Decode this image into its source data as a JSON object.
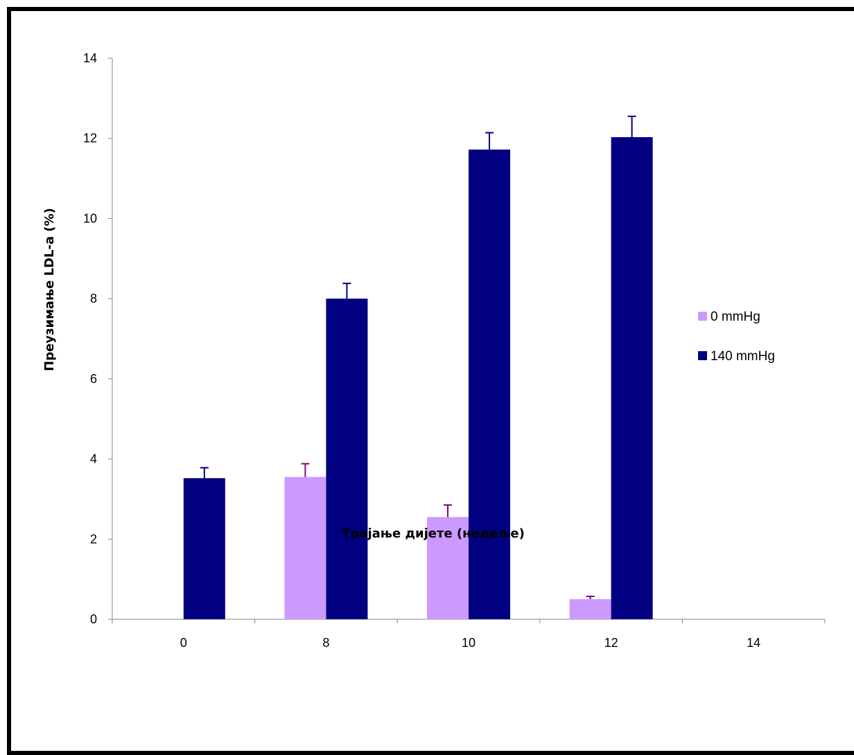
{
  "chart_data": {
    "type": "bar",
    "title": "",
    "xlabel": "Трајање дијете (недеље)",
    "ylabel": "Преузимање LDL-а (%)",
    "categories": [
      "0",
      "8",
      "10",
      "12",
      "14"
    ],
    "ylim": [
      0,
      14
    ],
    "yticks": [
      0,
      2,
      4,
      6,
      8,
      10,
      12,
      14
    ],
    "grid": false,
    "legend_position": "right",
    "series": [
      {
        "name": "0 mmHg",
        "color": "#cc99ff",
        "error_color": "#800080",
        "values": [
          null,
          3.55,
          2.55,
          0.5,
          null
        ],
        "errors": [
          null,
          0.33,
          0.3,
          0.07,
          null
        ]
      },
      {
        "name": "140 mmHg",
        "color": "#000080",
        "error_color": "#000080",
        "values": [
          3.52,
          8.0,
          11.72,
          12.03,
          null
        ],
        "errors": [
          0.26,
          0.38,
          0.42,
          0.52,
          null
        ]
      }
    ]
  }
}
